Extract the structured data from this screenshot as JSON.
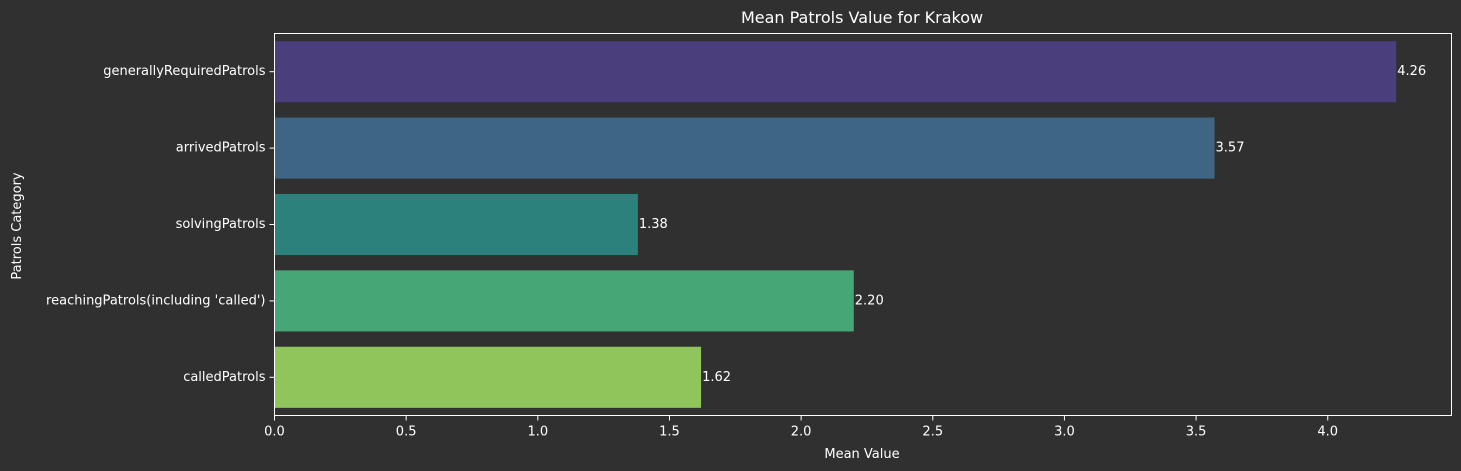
{
  "chart_data": {
    "type": "bar",
    "orientation": "horizontal",
    "title": "Mean Patrols Value for Krakow",
    "xlabel": "Mean Value",
    "ylabel": "Patrols Category",
    "categories": [
      "generallyRequiredPatrols",
      "arrivedPatrols",
      "solvingPatrols",
      "reachingPatrols(including 'called')",
      "calledPatrols"
    ],
    "values": [
      4.26,
      3.57,
      1.38,
      2.2,
      1.62
    ],
    "value_labels": [
      "4.26",
      "3.57",
      "1.38",
      "2.20",
      "1.62"
    ],
    "bar_colors": [
      "#4a3f7c",
      "#3e6583",
      "#2d817d",
      "#46a676",
      "#8fc55a"
    ],
    "xlim": [
      0,
      4.47
    ],
    "xticks": [
      0.0,
      0.5,
      1.0,
      1.5,
      2.0,
      2.5,
      3.0,
      3.5,
      4.0
    ],
    "xtick_labels": [
      "0.0",
      "0.5",
      "1.0",
      "1.5",
      "2.0",
      "2.5",
      "3.0",
      "3.5",
      "4.0"
    ],
    "grid": false,
    "background_color": "#303030",
    "axes_color": "#ffffff"
  }
}
